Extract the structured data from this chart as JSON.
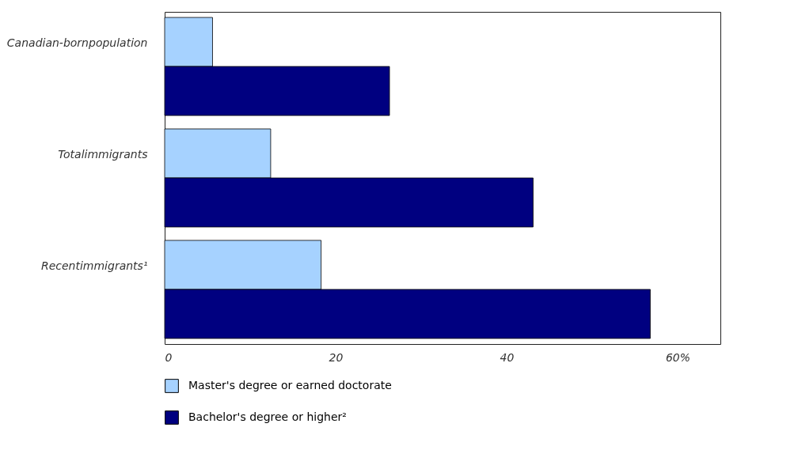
{
  "chart_data": {
    "type": "bar",
    "orientation": "horizontal",
    "categories": [
      "Canadian-bornpopulation",
      "Totalimmigrants",
      "Recentimmigrants¹"
    ],
    "series": [
      {
        "name": "Master's degree or earned doctorate",
        "color": "#a6d2ff",
        "values": [
          5.6,
          12.4,
          18.3
        ]
      },
      {
        "name": "Bachelor's degree or higher²",
        "color": "#000080",
        "values": [
          26.3,
          43.1,
          56.8
        ]
      }
    ],
    "xlim": [
      0,
      65
    ],
    "xticks": [
      0,
      20,
      40,
      {
        "value": 60,
        "label": "60%"
      }
    ],
    "grid": false,
    "legend": "bottom"
  }
}
